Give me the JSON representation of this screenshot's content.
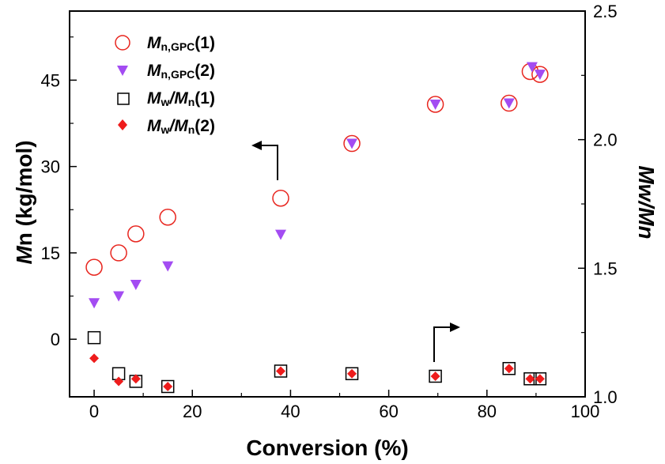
{
  "chart_data": {
    "type": "scatter",
    "xlabel": "Conversion (%)",
    "ylabel_left": {
      "italic": "M",
      "rest": "n (kg/mol)"
    },
    "ylabel_right": {
      "part1": "M",
      "part2": "w/",
      "part3": "M",
      "part4": "n"
    },
    "xlim": [
      -5,
      100
    ],
    "ylim_left": [
      -10,
      57
    ],
    "ylim_right": [
      1.0,
      2.5
    ],
    "x_ticks": [
      0,
      20,
      40,
      60,
      80,
      100
    ],
    "y_left_ticks": [
      0,
      15,
      30,
      45
    ],
    "y_right_ticks": [
      1.0,
      1.5,
      2.0,
      2.5
    ],
    "x_tick_labels": [
      "0",
      "20",
      "40",
      "60",
      "80",
      "100"
    ],
    "y_left_tick_labels": [
      "0",
      "15",
      "30",
      "45"
    ],
    "y_right_tick_labels": [
      "1.0",
      "1.5",
      "2.0",
      "2.5"
    ],
    "series": [
      {
        "name": "Mn,GPC(1)",
        "legend": {
          "m": "M",
          "sub": "n,GPC",
          "tail": "(1)"
        },
        "axis": "left",
        "marker": "open-circle",
        "color": "#e8261f",
        "x": [
          0,
          5,
          8.5,
          15,
          38,
          52.5,
          69.5,
          84.5,
          88.8,
          90.8
        ],
        "y": [
          12.5,
          15,
          18.3,
          21.2,
          24.5,
          34,
          40.8,
          41,
          46.5,
          46
        ]
      },
      {
        "name": "Mn,GPC(2)",
        "legend": {
          "m": "M",
          "sub": "n,GPC",
          "tail": "(2)"
        },
        "axis": "left",
        "marker": "down-triangle",
        "color": "#a34cf2",
        "x": [
          0,
          5,
          8.5,
          15,
          38,
          52.5,
          69.5,
          84.5,
          89.2,
          90.8
        ],
        "y": [
          6.3,
          7.5,
          9.5,
          12.7,
          18.2,
          34,
          40.8,
          41,
          47.3,
          46
        ]
      },
      {
        "name": "Mw/Mn(1)",
        "legend": {
          "m": "M",
          "sub": "w",
          "slash": "/",
          "m2": "M",
          "sub2": "n",
          "tail": "(1)"
        },
        "axis": "right",
        "marker": "open-square",
        "color": "#000000",
        "x": [
          0,
          5,
          8.5,
          15,
          38,
          52.5,
          69.5,
          84.5,
          88.8,
          90.8
        ],
        "y": [
          1.23,
          1.09,
          1.06,
          1.04,
          1.1,
          1.09,
          1.08,
          1.11,
          1.07,
          1.07
        ]
      },
      {
        "name": "Mw/Mn(2)",
        "legend": {
          "m": "M",
          "sub": "w",
          "slash": "/",
          "m2": "M",
          "sub2": "n",
          "tail": "(2)"
        },
        "axis": "right",
        "marker": "diamond",
        "color": "#ee1c1c",
        "x": [
          0,
          5,
          8.5,
          15,
          38,
          52.5,
          69.5,
          84.5,
          88.8,
          90.8
        ],
        "y": [
          1.15,
          1.06,
          1.07,
          1.04,
          1.1,
          1.09,
          1.08,
          1.11,
          1.07,
          1.07
        ]
      }
    ],
    "legend_position": "top-left",
    "grid": false,
    "annotations": [
      {
        "type": "arrow",
        "points_to": "left axis",
        "near_series": "Mn,GPC(1)"
      },
      {
        "type": "arrow",
        "points_to": "right axis",
        "near_series": "Mw/Mn(1)"
      }
    ]
  }
}
